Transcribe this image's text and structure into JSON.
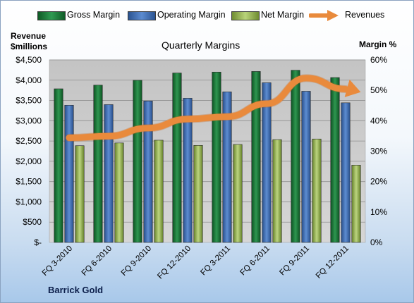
{
  "chart_data": {
    "type": "bar",
    "title": "Quarterly Margins",
    "left_axis_label": [
      "Revenue",
      "$millions"
    ],
    "right_axis_label": "Margin %",
    "company": "Barrick Gold",
    "categories": [
      "FQ 3-2010",
      "FQ 6-2010",
      "FQ 9-2010",
      "FQ 12-2010",
      "FQ 3-2011",
      "FQ 6-2011",
      "FQ 9-2011",
      "FQ 12-2011"
    ],
    "left_ylim": [
      0,
      4500
    ],
    "right_ylim": [
      0,
      60
    ],
    "left_ticks": [
      "$-",
      "$500",
      "$1,000",
      "$1,500",
      "$2,000",
      "$2,500",
      "$3,000",
      "$3,500",
      "$4,000",
      "$4,500"
    ],
    "right_ticks": [
      "0%",
      "10%",
      "20%",
      "30%",
      "40%",
      "50%",
      "60%"
    ],
    "series": [
      {
        "name": "Gross Margin",
        "axis": "right",
        "type": "bar",
        "color": "#1e7a3a",
        "values": [
          50.5,
          51.7,
          53.3,
          55.7,
          56,
          56.2,
          56.6,
          54.2
        ]
      },
      {
        "name": "Operating Margin",
        "axis": "right",
        "type": "bar",
        "color": "#3f6eb0",
        "values": [
          45.1,
          45.3,
          46.5,
          47.4,
          49.5,
          52.5,
          49.7,
          45.9
        ]
      },
      {
        "name": "Net Margin",
        "axis": "right",
        "type": "bar",
        "color": "#9bbb59",
        "values": [
          31.8,
          32.7,
          33.6,
          31.9,
          32.2,
          33.8,
          34,
          25.4
        ]
      },
      {
        "name": "Revenues",
        "axis": "left",
        "type": "line",
        "color": "#e98a3c",
        "values": [
          2580,
          2620,
          2820,
          3040,
          3100,
          3420,
          4050,
          3780
        ]
      }
    ],
    "grid": true,
    "legend_position": "top"
  }
}
